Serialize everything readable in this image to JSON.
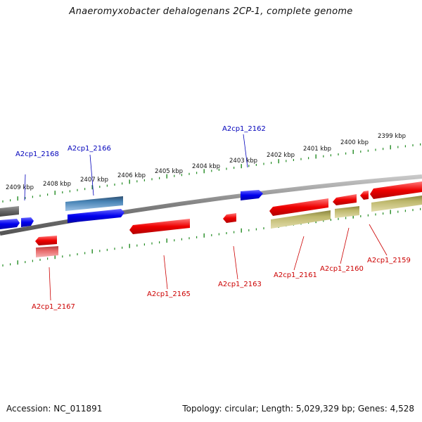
{
  "title": "Anaeromyxobacter dehalogenans 2CP-1, complete genome",
  "footer": {
    "accession": "Accession: NC_011891",
    "summary": "Topology: circular; Length: 5,029,329 bp; Genes: 4,528"
  },
  "colors": {
    "forward_gene": "#0000ee",
    "forward_gene_alt": "#4682b4",
    "reverse_gene": "#ee0000",
    "reverse_gene_alt": "#bdb76b",
    "pseudo_gene": "#666666",
    "tick": "#228b22",
    "backbone": "#808080",
    "label_forward": "#0000bb",
    "label_reverse": "#cc0000"
  },
  "kbp_labels": [
    "2409 kbp",
    "2408 kbp",
    "2407 kbp",
    "2406 kbp",
    "2405 kbp",
    "2404 kbp",
    "2403 kbp",
    "2402 kbp",
    "2401 kbp",
    "2400 kbp",
    "2399 kbp"
  ],
  "gene_labels": {
    "forward": [
      "A2cp1_2168",
      "A2cp1_2166",
      "A2cp1_2162"
    ],
    "reverse": [
      "A2cp1_2167",
      "A2cp1_2165",
      "A2cp1_2163",
      "A2cp1_2161",
      "A2cp1_2160",
      "A2cp1_2159"
    ]
  }
}
